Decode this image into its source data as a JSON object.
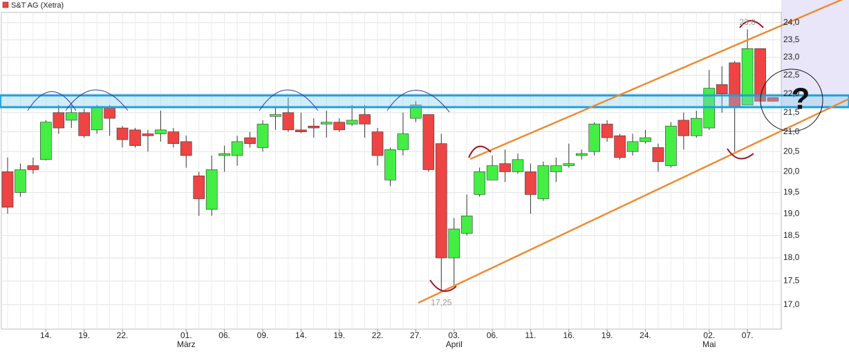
{
  "chart_data": {
    "type": "candlestick",
    "title": "S&T AG (Xetra)",
    "log_scale": true,
    "grid": true,
    "up_color": "#44ee44",
    "down_color": "#ee4444",
    "ylim": [
      16.5,
      24.3
    ],
    "yticks": [
      {
        "value": 17,
        "label": "17,0"
      },
      {
        "value": 17.5,
        "label": "17,5"
      },
      {
        "value": 18,
        "label": "18,0"
      },
      {
        "value": 18.5,
        "label": "18,5"
      },
      {
        "value": 19,
        "label": "19,0"
      },
      {
        "value": 19.5,
        "label": "19,5"
      },
      {
        "value": 20,
        "label": "20,0"
      },
      {
        "value": 20.5,
        "label": "20,5"
      },
      {
        "value": 21,
        "label": "21,0"
      },
      {
        "value": 21.5,
        "label": "21,5"
      },
      {
        "value": 22,
        "label": "22,0"
      },
      {
        "value": 22.5,
        "label": "22,5"
      },
      {
        "value": 23,
        "label": "23,0"
      },
      {
        "value": 23.5,
        "label": "23,5"
      },
      {
        "value": 24,
        "label": "24,0"
      }
    ],
    "categories": [
      null,
      null,
      null,
      "14.",
      null,
      null,
      "19.",
      null,
      null,
      "22.",
      null,
      null,
      null,
      null,
      "01.",
      null,
      null,
      "06.",
      null,
      null,
      "09.",
      null,
      null,
      "14.",
      null,
      null,
      "19.",
      null,
      null,
      "22.",
      null,
      null,
      "27.",
      null,
      null,
      "03.",
      null,
      null,
      "06.",
      null,
      null,
      "11.",
      null,
      null,
      "16.",
      null,
      null,
      "19.",
      null,
      null,
      "24.",
      null,
      null,
      null,
      null,
      "02.",
      null,
      null,
      "07.",
      null,
      null
    ],
    "months": [
      null,
      null,
      null,
      null,
      null,
      null,
      null,
      null,
      null,
      null,
      null,
      null,
      null,
      null,
      "März",
      null,
      null,
      null,
      null,
      null,
      null,
      null,
      null,
      null,
      null,
      null,
      null,
      null,
      null,
      null,
      null,
      null,
      null,
      null,
      null,
      "April",
      null,
      null,
      null,
      null,
      null,
      null,
      null,
      null,
      null,
      null,
      null,
      null,
      null,
      null,
      null,
      null,
      null,
      null,
      null,
      "Mai",
      null,
      null,
      null,
      null,
      null
    ],
    "open": [
      20.0,
      19.5,
      20.15,
      20.3,
      21.5,
      21.3,
      21.5,
      21.05,
      21.65,
      21.1,
      21.05,
      20.95,
      20.95,
      21.0,
      20.75,
      19.9,
      19.1,
      20.4,
      20.4,
      20.85,
      20.6,
      21.4,
      21.5,
      21.05,
      21.15,
      21.2,
      21.25,
      21.2,
      21.45,
      21.0,
      19.8,
      20.55,
      21.35,
      21.45,
      20.7,
      18.0,
      18.55,
      19.45,
      19.8,
      20.2,
      20.0,
      20.0,
      19.35,
      20.0,
      20.15,
      20.4,
      20.5,
      21.2,
      20.9,
      20.5,
      20.75,
      20.6,
      20.15,
      21.3,
      20.9,
      21.1,
      22.25,
      22.85,
      21.7,
      23.25,
      21.9
    ],
    "high": [
      20.35,
      20.2,
      20.35,
      21.3,
      21.7,
      21.7,
      21.6,
      21.7,
      21.7,
      21.15,
      21.1,
      21.05,
      21.55,
      21.1,
      20.9,
      20.0,
      20.4,
      20.65,
      20.9,
      21.0,
      21.3,
      21.65,
      21.9,
      21.5,
      21.35,
      21.55,
      21.35,
      21.7,
      21.7,
      21.1,
      20.6,
      21.5,
      21.8,
      21.45,
      20.95,
      18.9,
      19.45,
      20.1,
      20.4,
      20.55,
      20.45,
      20.2,
      20.25,
      20.35,
      20.7,
      20.55,
      21.25,
      21.3,
      20.95,
      20.95,
      21.05,
      20.7,
      21.25,
      21.5,
      21.55,
      22.65,
      22.75,
      22.9,
      23.8,
      23.25,
      21.9
    ],
    "low": [
      19.0,
      19.4,
      19.95,
      20.28,
      20.95,
      21.1,
      20.85,
      20.95,
      20.9,
      20.6,
      20.6,
      20.5,
      20.75,
      20.6,
      20.1,
      18.95,
      18.95,
      20.0,
      20.15,
      20.6,
      20.5,
      21.05,
      21.0,
      20.97,
      20.85,
      20.85,
      21.0,
      21.15,
      20.85,
      20.15,
      19.65,
      20.4,
      21.25,
      20.0,
      17.25,
      17.4,
      18.5,
      19.4,
      19.8,
      19.75,
      19.95,
      19.0,
      19.3,
      19.75,
      20.1,
      20.3,
      20.4,
      20.75,
      20.3,
      20.4,
      20.7,
      20.0,
      20.1,
      20.55,
      20.85,
      21.05,
      21.5,
      20.5,
      21.7,
      21.8,
      21.8
    ],
    "close": [
      19.15,
      20.05,
      20.05,
      21.25,
      21.1,
      21.5,
      20.9,
      21.65,
      21.35,
      20.8,
      20.65,
      20.9,
      21.05,
      20.7,
      20.4,
      19.35,
      20.05,
      20.45,
      20.75,
      20.7,
      21.2,
      21.45,
      21.05,
      21.0,
      21.1,
      21.25,
      21.05,
      21.3,
      21.2,
      20.4,
      20.55,
      20.95,
      21.7,
      20.05,
      18.0,
      18.65,
      18.95,
      20.0,
      20.15,
      20.0,
      20.3,
      19.45,
      20.15,
      20.15,
      20.2,
      20.45,
      21.2,
      20.85,
      20.35,
      20.75,
      20.85,
      20.25,
      21.15,
      20.9,
      21.35,
      22.15,
      22.0,
      21.65,
      23.25,
      21.8,
      21.8
    ],
    "low_labels": [
      null,
      null,
      null,
      null,
      null,
      null,
      null,
      null,
      null,
      null,
      null,
      null,
      null,
      null,
      null,
      null,
      null,
      null,
      null,
      null,
      null,
      null,
      null,
      null,
      null,
      null,
      null,
      null,
      null,
      null,
      null,
      null,
      null,
      null,
      "17,25",
      null,
      null,
      null,
      null,
      null,
      null,
      null,
      null,
      null,
      null,
      null,
      null,
      null,
      null,
      null,
      null,
      null,
      null,
      null,
      null,
      null,
      null,
      null,
      null,
      null,
      null
    ],
    "high_labels": [
      null,
      null,
      null,
      null,
      null,
      null,
      null,
      null,
      null,
      null,
      null,
      null,
      null,
      null,
      null,
      null,
      null,
      null,
      null,
      null,
      null,
      null,
      null,
      null,
      null,
      null,
      null,
      null,
      null,
      null,
      null,
      null,
      null,
      null,
      null,
      null,
      null,
      null,
      null,
      null,
      null,
      null,
      null,
      null,
      null,
      null,
      null,
      null,
      null,
      null,
      null,
      null,
      null,
      null,
      null,
      null,
      null,
      null,
      "23,8",
      null,
      null
    ],
    "annotation": "?"
  }
}
